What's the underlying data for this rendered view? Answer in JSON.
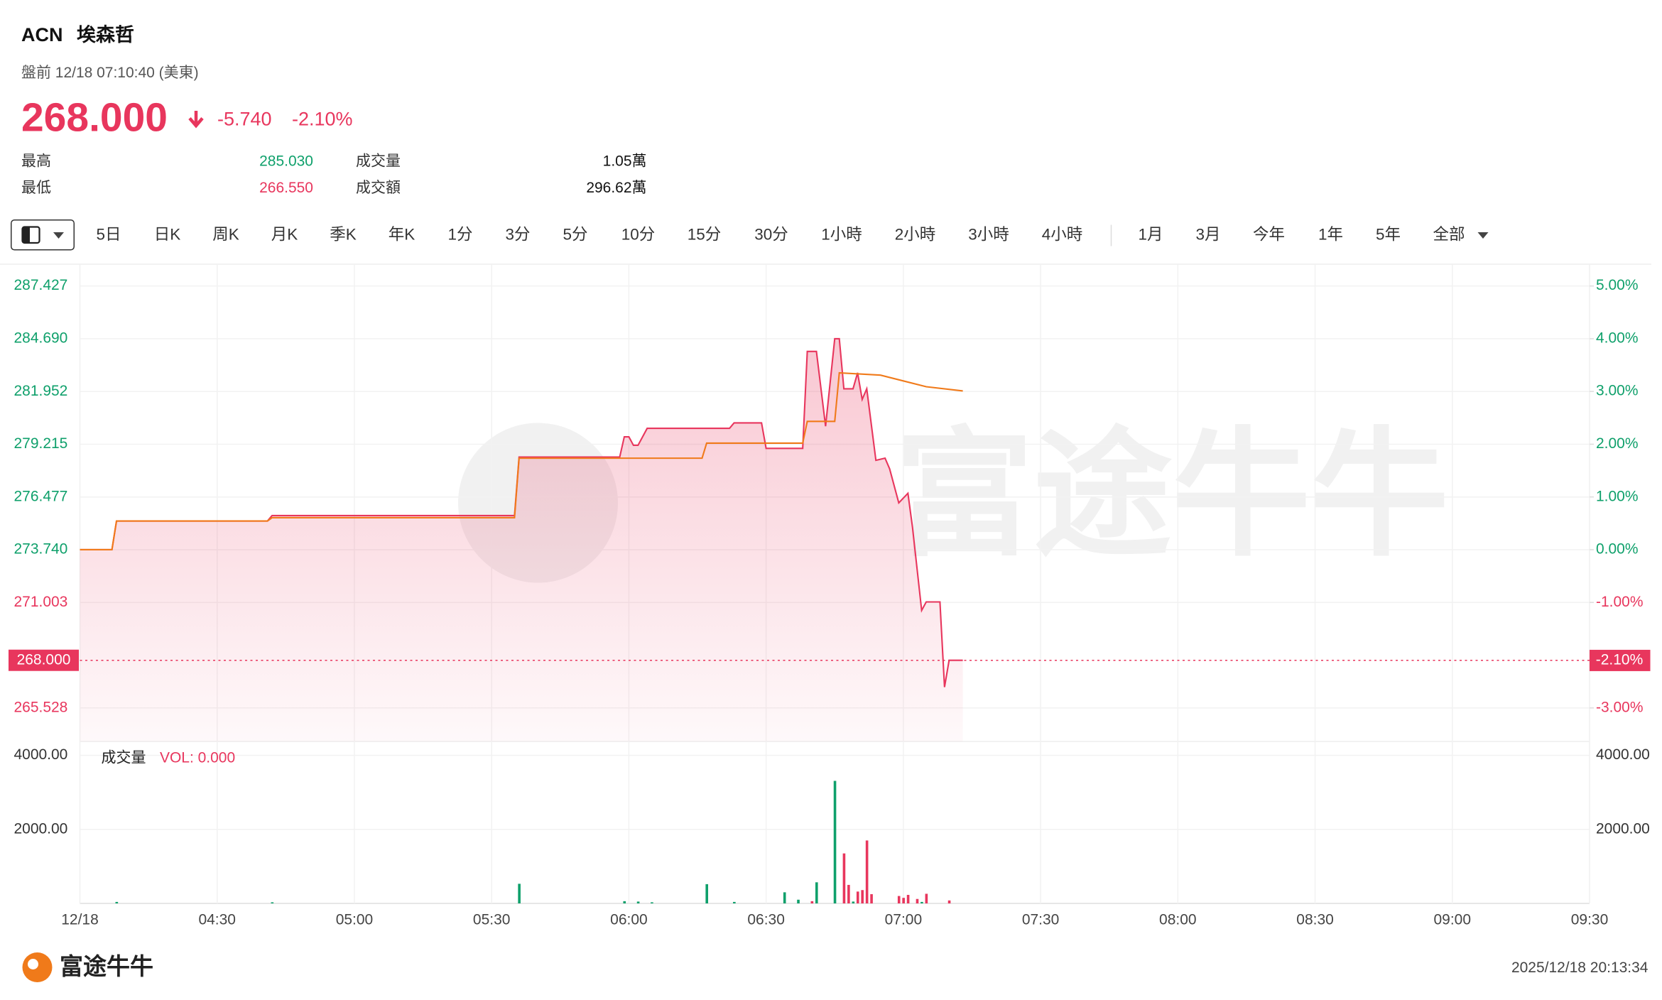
{
  "header": {
    "symbol": "ACN",
    "name": "埃森哲",
    "status": "盤前 12/18 07:10:40 (美東)",
    "price": "268.000",
    "change": "-5.740",
    "change_pct": "-2.10%",
    "stats": [
      [
        "最高",
        "285.030"
      ],
      [
        "最低",
        "266.550"
      ],
      [
        "成交量",
        "1.05萬"
      ],
      [
        "成交額",
        "296.62萬"
      ]
    ]
  },
  "toolbar": {
    "tabs": [
      "5日",
      "日K",
      "周K",
      "月K",
      "季K",
      "年K",
      "1分",
      "3分",
      "5分",
      "10分",
      "15分",
      "30分",
      "1小時",
      "2小時",
      "3小時",
      "4小時",
      "1月",
      "3月",
      "今年",
      "1年",
      "5年",
      "全部"
    ]
  },
  "chart_data": {
    "type": "line",
    "watermark": "富途牛牛",
    "xlim": [
      "04:00",
      "09:30"
    ],
    "xticks": [
      {
        "value": "04:00",
        "label": "12/18"
      },
      "04:30",
      "05:00",
      "05:30",
      "06:00",
      "06:30",
      "07:00",
      "07:30",
      "08:00",
      "08:30",
      "09:00",
      "09:30"
    ],
    "ylim": [
      263.787,
      288.558
    ],
    "yticks": [
      265.528,
      {
        "value": 271.003,
        "label": "271.003"
      },
      {
        "value": 273.74,
        "label": "273.740"
      },
      276.477,
      279.215,
      281.952,
      {
        "value": 284.69,
        "label": "284.690"
      },
      287.427
    ],
    "y2lim": [
      -3.636,
      5.413
    ],
    "y2ticks": [
      {
        "value": -3,
        "label": "-3.00%"
      },
      {
        "value": -1,
        "label": "-1.00%"
      },
      {
        "value": 0,
        "label": "0.00%"
      },
      {
        "value": 1,
        "label": "1.00%"
      },
      {
        "value": 2,
        "label": "2.00%"
      },
      {
        "value": 3,
        "label": "3.00%"
      },
      {
        "value": 4,
        "label": "4.00%"
      },
      {
        "value": 5,
        "label": "5.00%"
      }
    ],
    "last_price": {
      "value": 268.0,
      "label": "268.000"
    },
    "last_pct": {
      "value": -2.1,
      "label": "-2.10%"
    },
    "grid": true,
    "series": [
      {
        "color": "#e8365d",
        "x": [
          "04:00",
          "04:07",
          "04:08",
          "04:41",
          "04:42",
          "05:35",
          "05:36",
          "05:58",
          "05:59",
          "06:00",
          "06:01",
          "06:02",
          "06:04",
          "06:22",
          "06:23",
          "06:29",
          "06:30",
          "06:38",
          "06:39",
          "06:41",
          "06:43",
          "06:45",
          "06:46",
          "06:47",
          "06:49",
          "06:50",
          "06:51",
          "06:52",
          "06:54",
          "06:56",
          "06:57",
          "06:59",
          "07:01",
          "07:02",
          "07:04",
          "07:05",
          "07:08",
          "07:09",
          "07:10",
          "07:13"
        ],
        "values": [
          273.74,
          273.74,
          275.23,
          275.23,
          275.51,
          275.51,
          278.55,
          278.55,
          279.6,
          279.6,
          279.16,
          279.16,
          280.04,
          280.04,
          280.32,
          280.32,
          279.0,
          279.0,
          284.03,
          284.03,
          280.15,
          284.69,
          284.69,
          282.09,
          282.09,
          282.92,
          281.54,
          282.09,
          278.38,
          278.49,
          277.94,
          276.17,
          276.67,
          274.9,
          270.59,
          271.03,
          271.03,
          266.61,
          268.0,
          268.0
        ]
      },
      {
        "color": "#f07a1a",
        "x": [
          "04:00",
          "04:07",
          "04:08",
          "04:41",
          "04:42",
          "05:35",
          "05:36",
          "06:16",
          "06:17",
          "06:38",
          "06:39",
          "06:45",
          "06:46",
          "06:55",
          "07:05",
          "07:13"
        ],
        "values": [
          273.74,
          273.74,
          275.23,
          275.23,
          275.4,
          275.4,
          278.49,
          278.49,
          279.27,
          279.27,
          280.4,
          280.4,
          282.92,
          282.8,
          282.2,
          281.98
        ]
      }
    ],
    "volume": {
      "label": "成交量",
      "value_label": "VOL: 0.000",
      "ylim": [
        0,
        4374
      ],
      "yticks": [
        {
          "value": 2000,
          "label": "2000.00"
        },
        {
          "value": 4000,
          "label": "4000.00"
        }
      ],
      "series": [
        {
          "color": "#0fa06b",
          "x": [
            "04:08",
            "04:42",
            "05:36",
            "05:59",
            "06:02",
            "06:05",
            "06:17",
            "06:23",
            "06:34",
            "06:37",
            "06:41",
            "06:45",
            "06:49",
            "07:04"
          ],
          "values": [
            40,
            30,
            530,
            60,
            50,
            30,
            520,
            40,
            300,
            100,
            570,
            3310,
            50,
            40
          ]
        },
        {
          "color": "#e8365d",
          "x": [
            "06:40",
            "06:47",
            "06:48",
            "06:50",
            "06:51",
            "06:52",
            "06:53",
            "06:59",
            "07:00",
            "07:01",
            "07:03",
            "07:05",
            "07:10"
          ],
          "values": [
            60,
            1350,
            500,
            320,
            360,
            1700,
            250,
            200,
            150,
            230,
            120,
            260,
            80
          ]
        }
      ]
    }
  },
  "footer": {
    "logo": "富途牛牛",
    "timestamp": "2025/12/18 20:13:34"
  }
}
